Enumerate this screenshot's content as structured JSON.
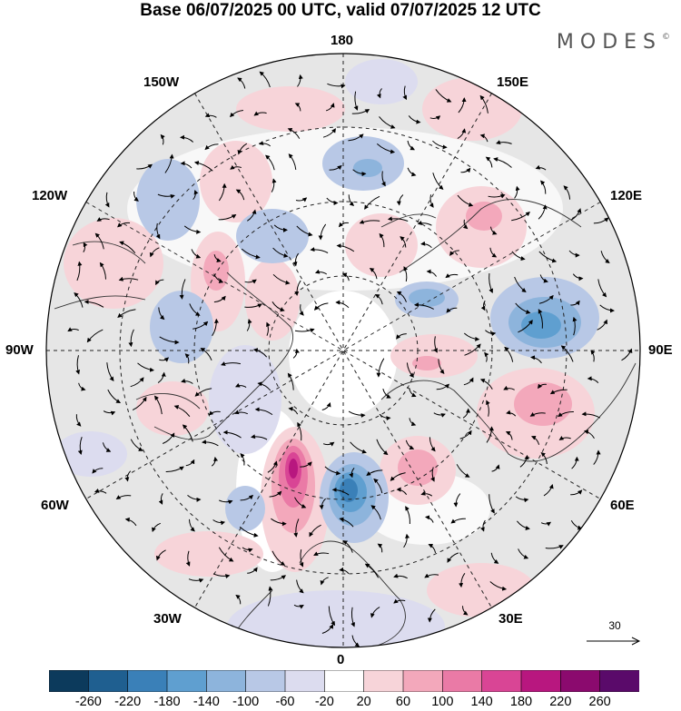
{
  "header": {
    "title": "Base 06/07/2025 00 UTC, valid 07/07/2025 12 UTC",
    "brand": "MODES",
    "brand_mark": "©"
  },
  "map": {
    "projection": "north-polar-stereographic",
    "center_lat": 90,
    "meridian_labels": [
      "180",
      "150E",
      "120E",
      "90E",
      "60E",
      "30E",
      "0",
      "30W",
      "60W",
      "90W",
      "120W",
      "150W"
    ],
    "reference_vector": {
      "label": "30"
    },
    "colors": {
      "land_outline": "#333333",
      "grid": "#222222",
      "missing": "#e6e6e6"
    }
  },
  "colorbar": {
    "tick_labels": [
      "-260",
      "-220",
      "-180",
      "-140",
      "-100",
      "-60",
      "-20",
      "20",
      "60",
      "100",
      "140",
      "180",
      "220",
      "260"
    ],
    "bins": [
      "#0c3a5c",
      "#1f5f90",
      "#3a80b8",
      "#5f9fd0",
      "#8db4dc",
      "#b8c8e6",
      "#dcdcef",
      "#ffffff",
      "#f7d4d9",
      "#f3a8bb",
      "#ea7aa6",
      "#d94595",
      "#b8177f",
      "#8b0a6e",
      "#5a0a6a"
    ]
  }
}
